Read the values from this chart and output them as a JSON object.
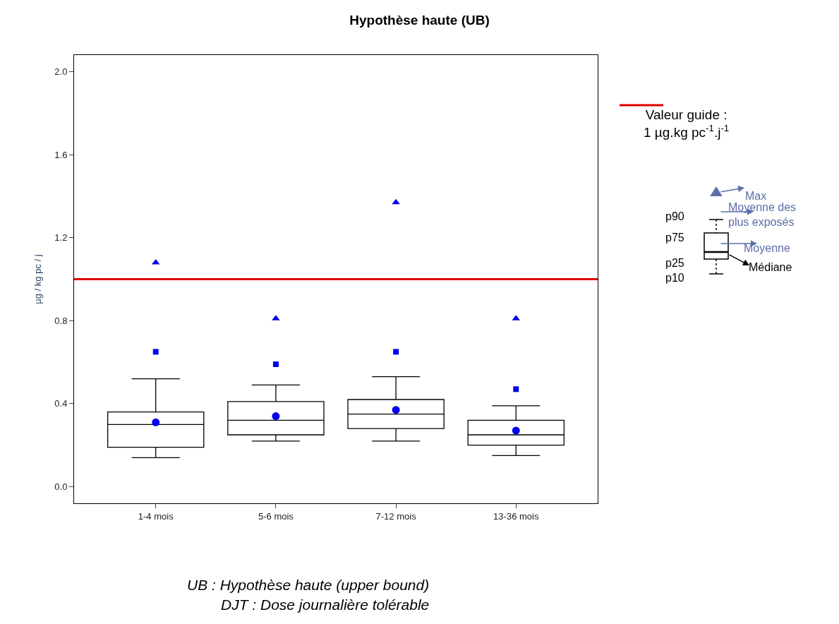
{
  "chart_data": {
    "type": "box",
    "title": "Hypothèse haute (UB)",
    "ylabel": "µg / kg pc / j",
    "categories": [
      "1-4 mois",
      "5-6 mois",
      "7-12 mois",
      "13-36 mois"
    ],
    "ylim": [
      -0.08,
      2.08
    ],
    "yticks": [
      {
        "value": 0,
        "label": "0.0"
      },
      0.4,
      0.8,
      1.2,
      1.6,
      {
        "value": 2,
        "label": "2.0"
      }
    ],
    "legend": "right",
    "boxes": [
      {
        "low": 0.14,
        "q1": 0.19,
        "median": 0.3,
        "q3": 0.36,
        "high": 0.52,
        "mean": 0.31
      },
      {
        "low": 0.22,
        "q1": 0.25,
        "median": 0.32,
        "q3": 0.41,
        "high": 0.49,
        "mean": 0.34
      },
      {
        "low": 0.22,
        "q1": 0.28,
        "median": 0.35,
        "q3": 0.42,
        "high": 0.53,
        "mean": 0.37
      },
      {
        "low": 0.15,
        "q1": 0.2,
        "median": 0.25,
        "q3": 0.32,
        "high": 0.39,
        "mean": 0.27
      }
    ],
    "series": [
      {
        "type": "scatter",
        "marker": "triangle",
        "color": "#0000ee",
        "x": [
          "1-4 mois",
          "5-6 mois",
          "7-12 mois",
          "13-36 mois"
        ],
        "values": [
          1.08,
          0.81,
          1.37,
          0.81
        ]
      },
      {
        "type": "scatter",
        "marker": "square",
        "color": "#0000ee",
        "x": [
          "1-4 mois",
          "5-6 mois",
          "7-12 mois",
          "13-36 mois"
        ],
        "values": [
          0.65,
          0.59,
          0.65,
          0.47
        ]
      }
    ],
    "ref_lines": [
      {
        "axis": "y",
        "value": 1,
        "label": "Valeur guide :\n1 µg.kg pc$^{-1}$.j$^{-1}$",
        "color": "#e00000"
      }
    ],
    "annotations": [
      "UB : Hypothèse haute (upper bound)",
      "DJT : Dose journalière tolérable",
      "p90",
      "p75",
      "p25",
      "p10",
      "Max",
      "Moyenne des plus exposés",
      "Moyenne",
      "Médiane"
    ]
  }
}
